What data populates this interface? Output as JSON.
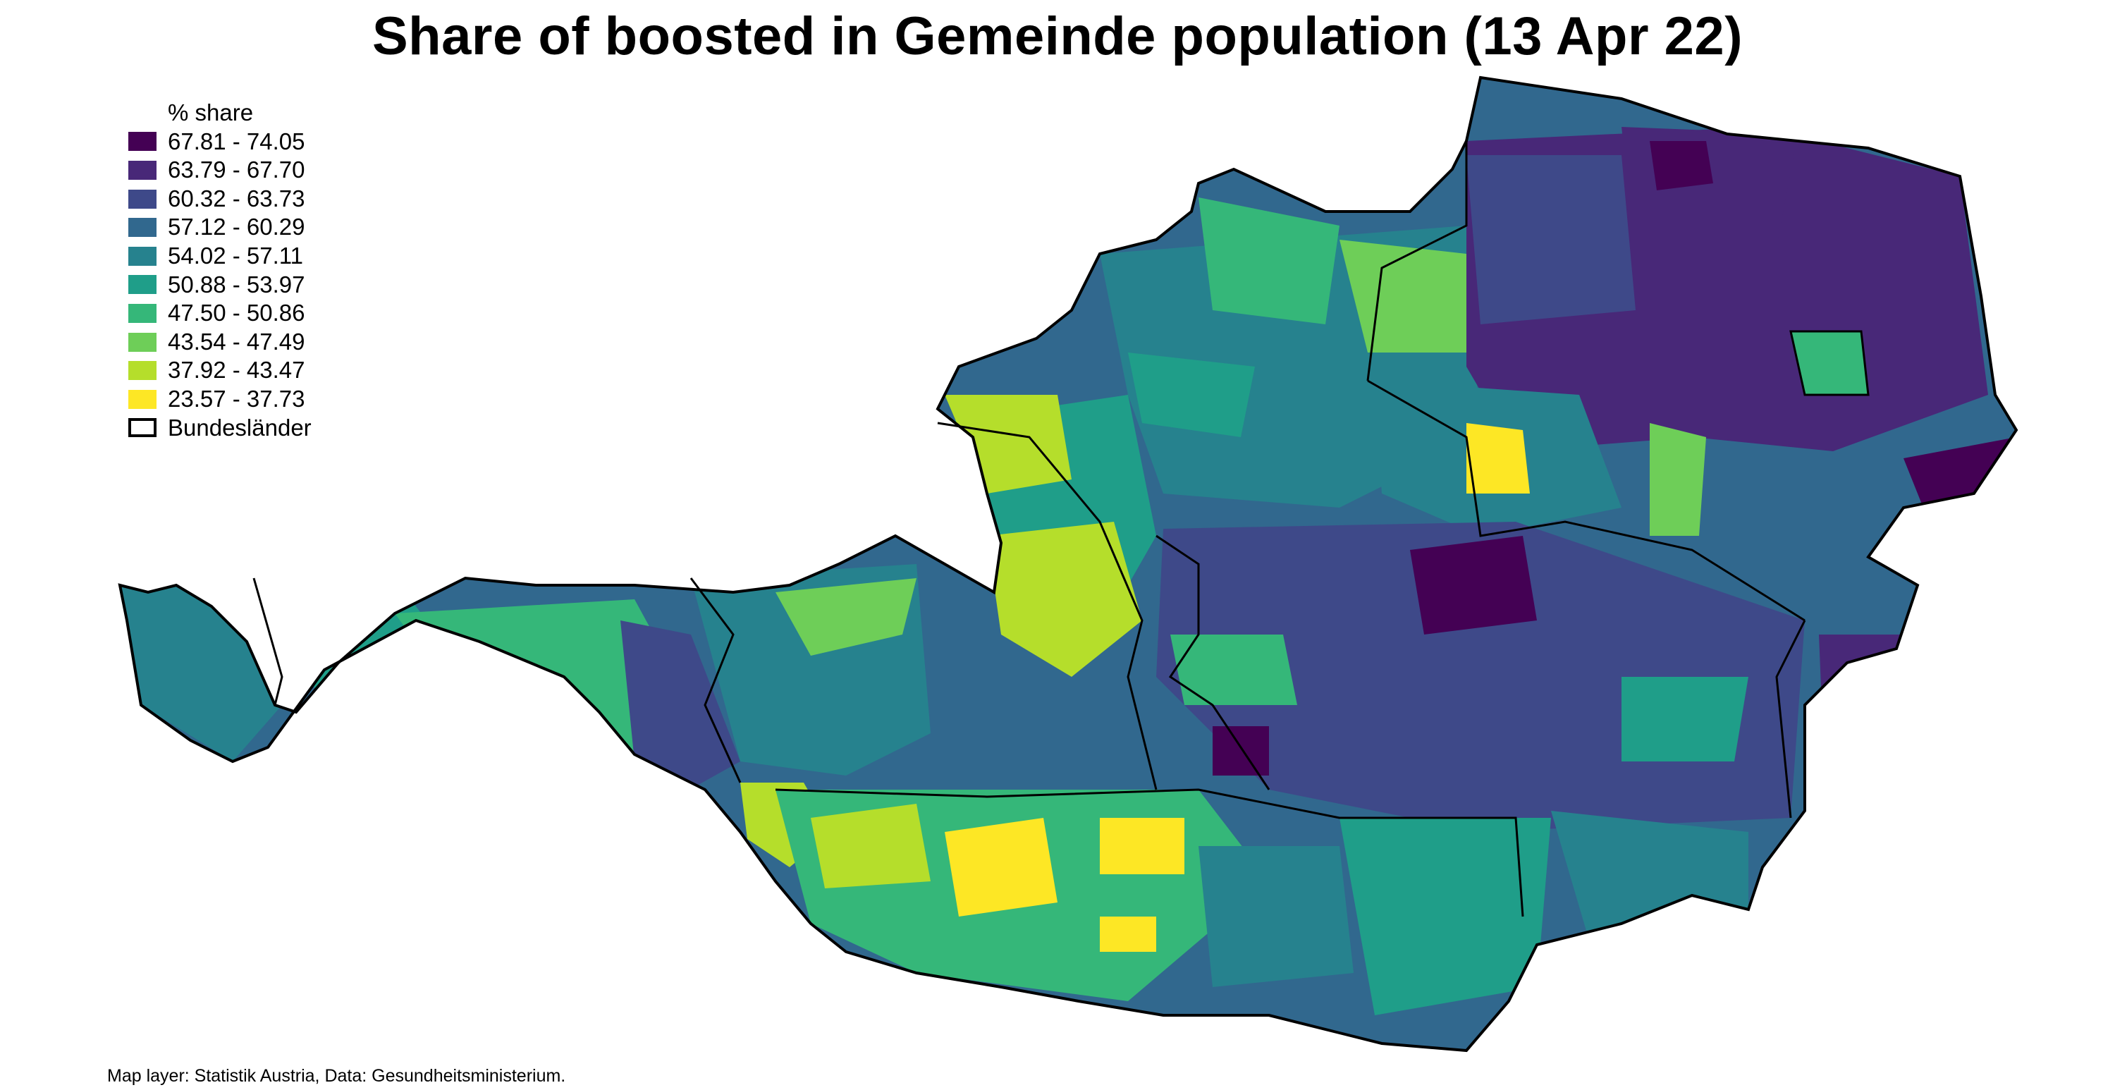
{
  "title": "Share of boosted in Gemeinde population (13 Apr 22)",
  "legend": {
    "title": "% share",
    "classes": [
      {
        "label": "67.81 - 74.05",
        "color": "#440154"
      },
      {
        "label": "63.79 - 67.70",
        "color": "#482878"
      },
      {
        "label": "60.32 - 63.73",
        "color": "#3e4989"
      },
      {
        "label": "57.12 - 60.29",
        "color": "#31688e"
      },
      {
        "label": "54.02 - 57.11",
        "color": "#26828e"
      },
      {
        "label": "50.88 - 53.97",
        "color": "#1f9e89"
      },
      {
        "label": "47.50 - 50.86",
        "color": "#35b779"
      },
      {
        "label": "43.54 - 47.49",
        "color": "#6ece58"
      },
      {
        "label": "37.92 - 43.47",
        "color": "#b5de2b"
      },
      {
        "label": "23.57 - 37.73",
        "color": "#fde725"
      }
    ],
    "boundary_label": "Bundesländer"
  },
  "credit": "Map layer: Statistik Austria, Data: Gesundheitsministerium."
}
